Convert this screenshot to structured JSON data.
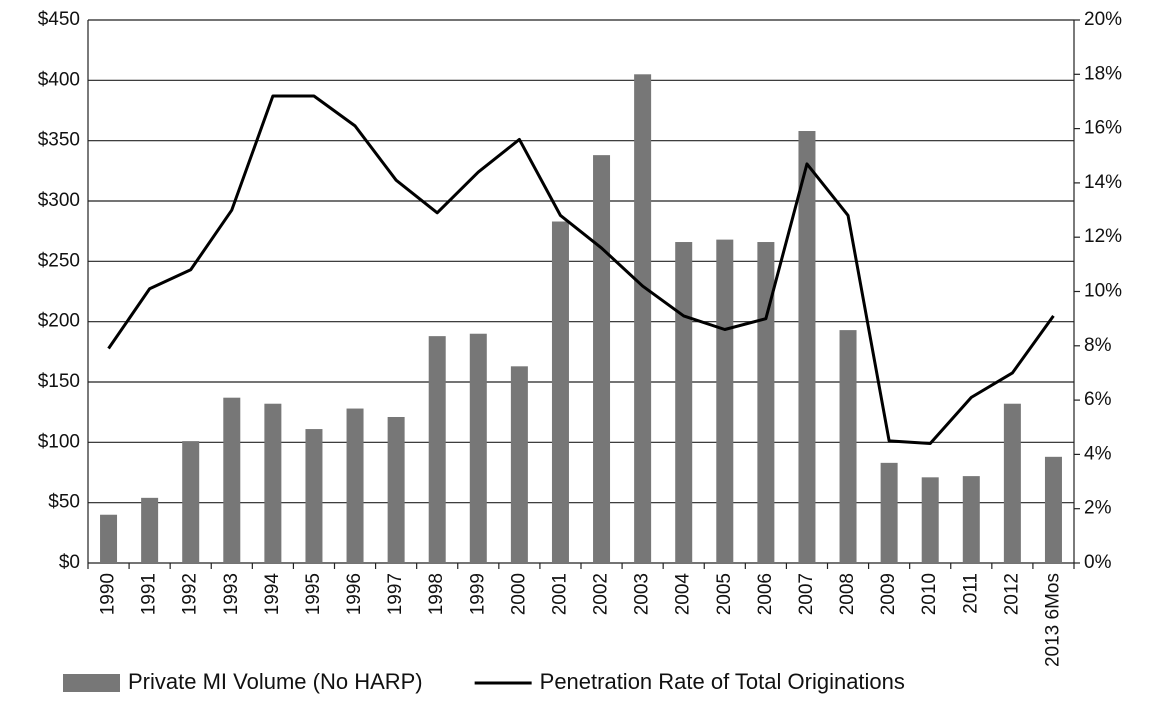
{
  "chart_data": {
    "type": "bar_line",
    "categories": [
      "1990",
      "1991",
      "1992",
      "1993",
      "1994",
      "1995",
      "1996",
      "1997",
      "1998",
      "1999",
      "2000",
      "2001",
      "2002",
      "2003",
      "2004",
      "2005",
      "2006",
      "2007",
      "2008",
      "2009",
      "2010",
      "2011",
      "2012",
      "2013 6Mos"
    ],
    "series": [
      {
        "name": "Private MI Volume (No HARP)",
        "color": "#777777",
        "type": "bar",
        "axis": "y",
        "values": [
          40,
          54,
          101,
          137,
          132,
          111,
          128,
          121,
          188,
          190,
          163,
          283,
          338,
          405,
          266,
          268,
          266,
          358,
          193,
          83,
          71,
          72,
          132,
          88
        ]
      },
      {
        "name": "Penetration Rate of Total Originations",
        "color": "#000000",
        "type": "line",
        "axis": "y2",
        "values": [
          7.9,
          10.1,
          10.8,
          13.0,
          17.2,
          17.2,
          16.1,
          14.1,
          12.9,
          14.4,
          15.6,
          12.8,
          11.6,
          10.2,
          9.1,
          8.6,
          9.0,
          14.7,
          12.8,
          4.5,
          4.4,
          6.1,
          7.0,
          9.1
        ]
      }
    ],
    "ylim": [
      0,
      450
    ],
    "yticks": [
      {
        "value": 0,
        "label": "$0"
      },
      {
        "value": 50,
        "label": "$50"
      },
      {
        "value": 100,
        "label": "$100"
      },
      {
        "value": 150,
        "label": "$150"
      },
      {
        "value": 200,
        "label": "$200"
      },
      {
        "value": 250,
        "label": "$250"
      },
      {
        "value": 300,
        "label": "$300"
      },
      {
        "value": 350,
        "label": "$350"
      },
      {
        "value": 400,
        "label": "$400"
      },
      {
        "value": 450,
        "label": "$450"
      }
    ],
    "y2lim": [
      0,
      20
    ],
    "y2ticks": [
      {
        "value": 0,
        "label": "0%"
      },
      {
        "value": 2,
        "label": "2%"
      },
      {
        "value": 4,
        "label": "4%"
      },
      {
        "value": 6,
        "label": "6%"
      },
      {
        "value": 8,
        "label": "8%"
      },
      {
        "value": 10,
        "label": "10%"
      },
      {
        "value": 12,
        "label": "12%"
      },
      {
        "value": 14,
        "label": "14%"
      },
      {
        "value": 16,
        "label": "16%"
      },
      {
        "value": 18,
        "label": "18%"
      },
      {
        "value": 20,
        "label": "20%"
      }
    ],
    "grid": true,
    "legend": "bottom"
  }
}
